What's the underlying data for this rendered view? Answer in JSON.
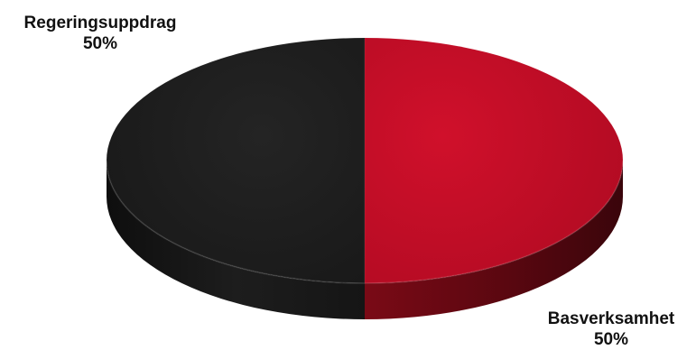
{
  "chart_data": {
    "type": "pie",
    "style": "3d",
    "title": "",
    "slices": [
      {
        "name": "Regeringsuppdrag",
        "value": 50,
        "value_label": "50%",
        "color": "#1c1c1c"
      },
      {
        "name": "Basverksamhet",
        "value": 50,
        "value_label": "50%",
        "color": "#c00b24"
      }
    ],
    "legend": "none",
    "data_labels": "outside"
  }
}
